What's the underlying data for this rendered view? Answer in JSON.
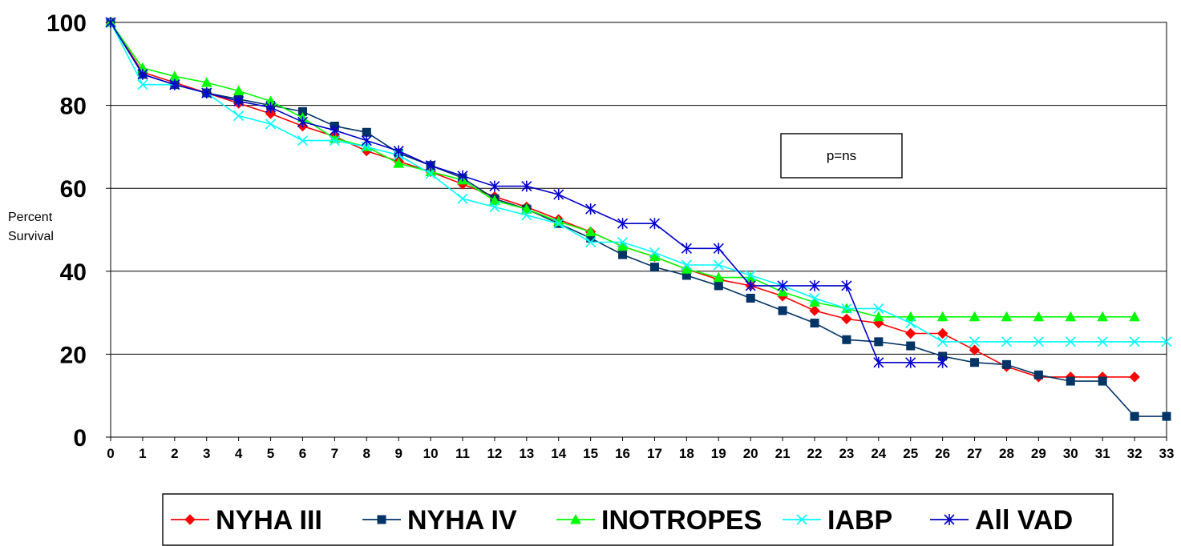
{
  "chart_data": {
    "type": "line",
    "title": "",
    "xlabel": "",
    "ylabel": "Percent Survival",
    "ylabel_lines": [
      "Percent",
      "Survival"
    ],
    "xlim": [
      0,
      33
    ],
    "ylim": [
      0,
      100
    ],
    "x_ticks": [
      0,
      1,
      2,
      3,
      4,
      5,
      6,
      7,
      8,
      9,
      10,
      11,
      12,
      13,
      14,
      15,
      16,
      17,
      18,
      19,
      20,
      21,
      22,
      23,
      24,
      25,
      26,
      27,
      28,
      29,
      30,
      31,
      32,
      33
    ],
    "y_ticks": [
      0,
      20,
      40,
      60,
      80,
      100
    ],
    "grid": "horizontal",
    "legend_position": "bottom",
    "annotation": "p=ns",
    "series": [
      {
        "name": "NYHA III",
        "color": "#ff0000",
        "marker": "diamond",
        "points": [
          [
            0,
            100
          ],
          [
            1,
            88
          ],
          [
            2,
            85.5
          ],
          [
            3,
            83
          ],
          [
            4,
            80.5
          ],
          [
            5,
            78
          ],
          [
            6,
            75
          ],
          [
            7,
            72.5
          ],
          [
            8,
            69
          ],
          [
            9,
            66.5
          ],
          [
            10,
            64
          ],
          [
            11,
            61
          ],
          [
            12,
            58
          ],
          [
            13,
            55.5
          ],
          [
            14,
            52.5
          ],
          [
            15,
            49.5
          ],
          [
            16,
            46
          ],
          [
            17,
            43.5
          ],
          [
            18,
            40.5
          ],
          [
            19,
            38
          ],
          [
            20,
            36.5
          ],
          [
            21,
            34
          ],
          [
            22,
            30.5
          ],
          [
            23,
            28.5
          ],
          [
            24,
            27.5
          ],
          [
            25,
            25
          ],
          [
            26,
            25
          ],
          [
            27,
            21
          ],
          [
            28,
            17
          ],
          [
            29,
            14.5
          ],
          [
            30,
            14.5
          ],
          [
            31,
            14.5
          ],
          [
            32,
            14.5
          ]
        ]
      },
      {
        "name": "NYHA IV",
        "color": "#003366",
        "marker": "square",
        "points": [
          [
            0,
            100
          ],
          [
            1,
            87.5
          ],
          [
            2,
            85
          ],
          [
            3,
            83
          ],
          [
            4,
            81.5
          ],
          [
            5,
            80
          ],
          [
            6,
            78.5
          ],
          [
            7,
            75
          ],
          [
            8,
            73.5
          ],
          [
            9,
            68.5
          ],
          [
            10,
            65.5
          ],
          [
            11,
            62.5
          ],
          [
            12,
            57.5
          ],
          [
            13,
            55
          ],
          [
            14,
            51.5
          ],
          [
            15,
            48
          ],
          [
            16,
            44
          ],
          [
            17,
            41
          ],
          [
            18,
            39
          ],
          [
            19,
            36.5
          ],
          [
            20,
            33.5
          ],
          [
            21,
            30.5
          ],
          [
            22,
            27.5
          ],
          [
            23,
            23.5
          ],
          [
            24,
            23
          ],
          [
            25,
            22
          ],
          [
            26,
            19.5
          ],
          [
            27,
            18
          ],
          [
            28,
            17.5
          ],
          [
            29,
            15
          ],
          [
            30,
            13.5
          ],
          [
            31,
            13.5
          ],
          [
            32,
            5
          ],
          [
            33,
            5
          ]
        ]
      },
      {
        "name": "INOTROPES",
        "color": "#00ff00",
        "marker": "triangle",
        "points": [
          [
            0,
            100
          ],
          [
            1,
            89
          ],
          [
            2,
            87
          ],
          [
            3,
            85.5
          ],
          [
            4,
            83.5
          ],
          [
            5,
            81
          ],
          [
            6,
            77
          ],
          [
            7,
            72
          ],
          [
            8,
            70
          ],
          [
            9,
            66
          ],
          [
            10,
            64
          ],
          [
            11,
            62
          ],
          [
            12,
            57
          ],
          [
            13,
            55
          ],
          [
            14,
            52
          ],
          [
            15,
            49.5
          ],
          [
            16,
            46
          ],
          [
            17,
            43.5
          ],
          [
            18,
            40.5
          ],
          [
            19,
            38.5
          ],
          [
            20,
            38.5
          ],
          [
            21,
            35
          ],
          [
            22,
            32.5
          ],
          [
            23,
            31
          ],
          [
            24,
            29
          ],
          [
            25,
            29
          ],
          [
            26,
            29
          ],
          [
            27,
            29
          ],
          [
            28,
            29
          ],
          [
            29,
            29
          ],
          [
            30,
            29
          ],
          [
            31,
            29
          ],
          [
            32,
            29
          ]
        ]
      },
      {
        "name": "IABP",
        "color": "#00ffff",
        "marker": "x",
        "points": [
          [
            0,
            100
          ],
          [
            1,
            85
          ],
          [
            2,
            85
          ],
          [
            3,
            83
          ],
          [
            4,
            77.5
          ],
          [
            5,
            75.5
          ],
          [
            6,
            71.5
          ],
          [
            7,
            71.5
          ],
          [
            8,
            70
          ],
          [
            9,
            68
          ],
          [
            10,
            63.5
          ],
          [
            11,
            57.5
          ],
          [
            12,
            55.5
          ],
          [
            13,
            53.5
          ],
          [
            14,
            51.5
          ],
          [
            15,
            47
          ],
          [
            16,
            47
          ],
          [
            17,
            44.5
          ],
          [
            18,
            41.5
          ],
          [
            19,
            41.5
          ],
          [
            20,
            39
          ],
          [
            21,
            36.5
          ],
          [
            22,
            33.5
          ],
          [
            23,
            31
          ],
          [
            24,
            31
          ],
          [
            25,
            27.5
          ],
          [
            26,
            23
          ],
          [
            27,
            23
          ],
          [
            28,
            23
          ],
          [
            29,
            23
          ],
          [
            30,
            23
          ],
          [
            31,
            23
          ],
          [
            32,
            23
          ],
          [
            33,
            23
          ]
        ]
      },
      {
        "name": "All VAD",
        "color": "#0000cc",
        "marker": "asterisk",
        "points": [
          [
            0,
            100
          ],
          [
            1,
            87.5
          ],
          [
            2,
            85
          ],
          [
            3,
            83
          ],
          [
            4,
            81
          ],
          [
            5,
            79.5
          ],
          [
            6,
            76
          ],
          [
            7,
            74
          ],
          [
            8,
            71.5
          ],
          [
            9,
            69
          ],
          [
            10,
            65.5
          ],
          [
            11,
            63
          ],
          [
            12,
            60.5
          ],
          [
            13,
            60.5
          ],
          [
            14,
            58.5
          ],
          [
            15,
            55
          ],
          [
            16,
            51.5
          ],
          [
            17,
            51.5
          ],
          [
            18,
            45.5
          ],
          [
            19,
            45.5
          ],
          [
            20,
            36.5
          ],
          [
            21,
            36.5
          ],
          [
            22,
            36.5
          ],
          [
            23,
            36.5
          ],
          [
            24,
            18
          ],
          [
            25,
            18
          ],
          [
            26,
            18
          ]
        ]
      }
    ]
  },
  "legend": {
    "items": [
      "NYHA III",
      "NYHA IV",
      "INOTROPES",
      "IABP",
      "All VAD"
    ]
  }
}
